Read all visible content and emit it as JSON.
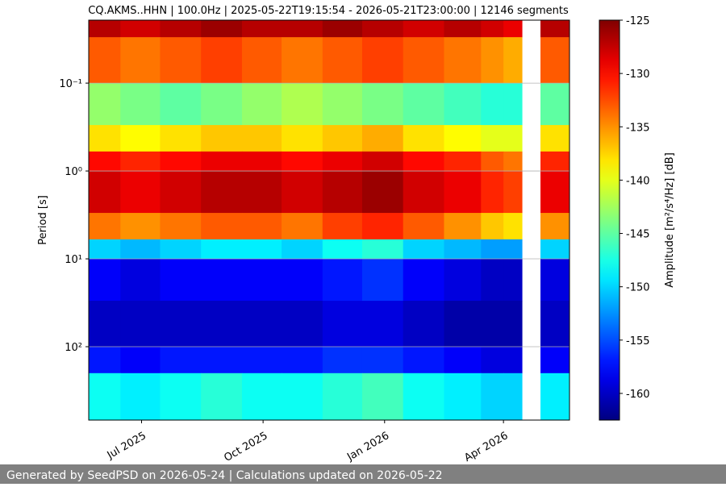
{
  "chart_data": {
    "type": "heatmap",
    "title": "CQ.AKMS..HHN | 100.0Hz | 2025-05-22T19:15:54 - 2026-05-21T23:00:00 | 12146 segments",
    "y_label": "Period [s]",
    "colorbar_label": "Amplitude [m²/s⁴/Hz] [dB]",
    "footer": "Generated by SeedPSD on 2026-05-24 | Calculations updated on 2026-05-22",
    "colormap": "jet",
    "y_scale": "log",
    "y_inverted": true,
    "grid": true,
    "xlim": [
      "2025-05-22",
      "2026-05-21"
    ],
    "xticks": [
      {
        "value": "2025-07-01",
        "label": "Jul 2025"
      },
      {
        "value": "2025-10-01",
        "label": "Oct 2025"
      },
      {
        "value": "2026-01-01",
        "label": "Jan 2026"
      },
      {
        "value": "2026-04-01",
        "label": "Apr 2026"
      }
    ],
    "ylim": [
      0.0192,
      684
    ],
    "yticks": [
      {
        "value": 0.1,
        "label": "10⁻¹"
      },
      {
        "value": 1,
        "label": "10⁰"
      },
      {
        "value": 10,
        "label": "10¹"
      },
      {
        "value": 100,
        "label": "10²"
      }
    ],
    "zlim": [
      -162.5,
      -125
    ],
    "zticks": [
      -125,
      -130,
      -135,
      -140,
      -145,
      -150,
      -155,
      -160
    ],
    "x_bins": [
      "2025-05-22",
      "2025-06-15",
      "2025-07-15",
      "2025-08-15",
      "2025-09-15",
      "2025-10-15",
      "2025-11-15",
      "2025-12-15",
      "2026-01-15",
      "2026-02-15",
      "2026-03-15",
      "2026-04-01",
      "2026-04-15",
      "2026-04-29",
      "2026-05-21"
    ],
    "y_bins": [
      0.0192,
      0.03,
      0.1,
      0.3,
      0.6,
      1,
      3,
      6,
      10,
      30,
      100,
      200,
      684
    ],
    "z": [
      [
        -127,
        -128,
        -127,
        -126,
        -127,
        -127,
        -126,
        -127,
        -128,
        -127,
        -128,
        -129,
        null,
        -127
      ],
      [
        -133,
        -134,
        -133,
        -132,
        -133,
        -134,
        -133,
        -132,
        -133,
        -134,
        -135,
        -136,
        null,
        -133
      ],
      [
        -143,
        -144,
        -145,
        -144,
        -143,
        -142,
        -143,
        -144,
        -145,
        -146,
        -147,
        -147,
        null,
        -145
      ],
      [
        -138,
        -139,
        -138,
        -137,
        -137,
        -138,
        -137,
        -136,
        -138,
        -139,
        -140,
        -140,
        null,
        -138
      ],
      [
        -130,
        -131,
        -130,
        -129,
        -129,
        -130,
        -129,
        -128,
        -130,
        -131,
        -133,
        -134,
        null,
        -131
      ],
      [
        -128,
        -129,
        -128,
        -127,
        -127,
        -128,
        -127,
        -126,
        -128,
        -129,
        -131,
        -132,
        null,
        -129
      ],
      [
        -134,
        -135,
        -134,
        -133,
        -133,
        -134,
        -132,
        -131,
        -133,
        -135,
        -137,
        -138,
        null,
        -135
      ],
      [
        -150,
        -151,
        -150,
        -149,
        -149,
        -150,
        -148,
        -147,
        -150,
        -151,
        -152,
        -152,
        null,
        -150
      ],
      [
        -158,
        -159,
        -158,
        -158,
        -158,
        -158,
        -157,
        -156,
        -158,
        -159,
        -160,
        -160,
        null,
        -159
      ],
      [
        -160,
        -160,
        -160,
        -160,
        -160,
        -160,
        -159,
        -159,
        -160,
        -161,
        -161,
        -161,
        null,
        -160
      ],
      [
        -157,
        -158,
        -157,
        -157,
        -157,
        -157,
        -156,
        -156,
        -157,
        -158,
        -159,
        -159,
        null,
        -158
      ],
      [
        -148,
        -149,
        -148,
        -147,
        -148,
        -148,
        -147,
        -146,
        -148,
        -149,
        -150,
        -150,
        null,
        -149
      ]
    ]
  }
}
